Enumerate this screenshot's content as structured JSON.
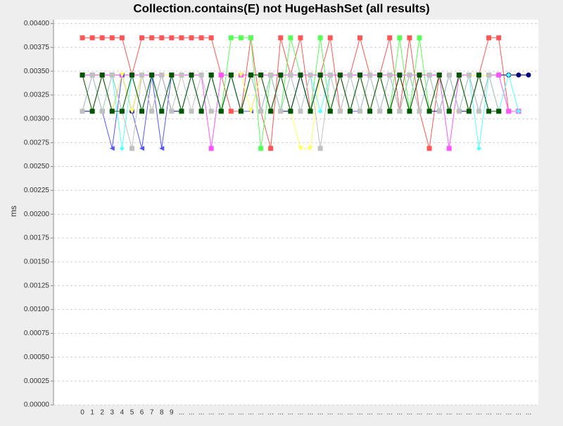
{
  "chart_data": {
    "type": "line",
    "title": "Collection.contains(E) not HugeHashSet (all results)",
    "y_label": "ms",
    "grid": true,
    "categories": [
      "0",
      "1",
      "2",
      "3",
      "4",
      "5",
      "6",
      "7",
      "8",
      "9",
      "...",
      "...",
      "...",
      "...",
      "...",
      "...",
      "...",
      "...",
      "...",
      "...",
      "...",
      "...",
      "...",
      "...",
      "...",
      "...",
      "...",
      "...",
      "...",
      "...",
      "...",
      "...",
      "...",
      "...",
      "...",
      "...",
      "...",
      "...",
      "...",
      "...",
      "...",
      "...",
      "...",
      "...",
      "...",
      "..."
    ],
    "ylim": [
      0,
      0.00404
    ],
    "yticks": [
      {
        "value": 0,
        "label": "0.00000"
      },
      {
        "value": 0.00025,
        "label": "0.00025"
      },
      {
        "value": 0.0005,
        "label": "0.00050"
      },
      {
        "value": 0.00075,
        "label": "0.00075"
      },
      {
        "value": 0.001,
        "label": "0.00100"
      },
      {
        "value": 0.00125,
        "label": "0.00125"
      },
      {
        "value": 0.0015,
        "label": "0.00150"
      },
      {
        "value": 0.00175,
        "label": "0.00175"
      },
      {
        "value": 0.002,
        "label": "0.00200"
      },
      {
        "value": 0.00225,
        "label": "0.00225"
      },
      {
        "value": 0.0025,
        "label": "0.00250"
      },
      {
        "value": 0.00275,
        "label": "0.00275"
      },
      {
        "value": 0.003,
        "label": "0.00300"
      },
      {
        "value": 0.00325,
        "label": "0.00325"
      },
      {
        "value": 0.0035,
        "label": "0.00350"
      },
      {
        "value": 0.00375,
        "label": "0.00375"
      },
      {
        "value": 0.004,
        "label": "0.00400"
      }
    ],
    "series": [
      {
        "color": "#ff5555",
        "marker": "square",
        "values": [
          0.00385,
          0.00385,
          0.00385,
          0.00385,
          0.00385,
          0.00346,
          0.00385,
          0.00385,
          0.00385,
          0.00385,
          0.00385,
          0.00385,
          0.00385,
          0.00385,
          0.00346,
          0.00308,
          0.00308,
          0.00385,
          0.00308,
          0.00269,
          0.00385,
          0.00346,
          0.00385,
          0.00308,
          0.00346,
          0.00385,
          0.00308,
          0.00346,
          0.00385,
          0.00346,
          0.00346,
          0.00385,
          0.00308,
          0.00385,
          0.00308,
          0.00269,
          0.00346,
          0.00308,
          0.00346,
          0.00308,
          0.00346,
          0.00385,
          0.00385,
          0.00308,
          0.00308,
          null
        ]
      },
      {
        "color": "#000080",
        "marker": "circle",
        "values": [
          0.00308,
          0.00308,
          0.00346,
          0.00308,
          0.00346,
          0.00308,
          0.00346,
          0.00308,
          0.00346,
          0.00308,
          0.00308,
          0.00346,
          0.00308,
          0.00346,
          0.00308,
          0.00346,
          0.00308,
          0.00346,
          0.00308,
          0.00346,
          0.00308,
          0.00308,
          0.00346,
          0.00308,
          0.00346,
          0.00308,
          0.00346,
          0.00308,
          0.00346,
          0.00308,
          0.00346,
          0.00308,
          0.00346,
          0.00308,
          0.00346,
          0.00308,
          0.00308,
          0.00346,
          0.00308,
          0.00308,
          0.00346,
          0.00346,
          0.00346,
          0.00346,
          0.00346,
          0.00346
        ]
      },
      {
        "color": "#55ff55",
        "marker": "square",
        "values": [
          0.00346,
          0.00346,
          0.00308,
          0.00346,
          0.00308,
          0.00346,
          0.00308,
          0.00346,
          0.00308,
          0.00346,
          0.00308,
          0.00346,
          0.00308,
          0.00346,
          0.00308,
          0.00385,
          0.00385,
          0.00385,
          0.00269,
          0.00346,
          0.00308,
          0.00385,
          0.00346,
          0.00308,
          0.00385,
          0.00308,
          0.00346,
          0.00308,
          0.00346,
          0.00308,
          0.00346,
          0.00308,
          0.00385,
          0.00308,
          0.00385,
          0.00308,
          0.00346,
          0.00308,
          0.00346,
          0.00308,
          0.00346,
          0.00346,
          0.00308,
          null,
          null,
          null
        ]
      },
      {
        "color": "#ff55ff",
        "marker": "square",
        "values": [
          0.00346,
          0.00346,
          0.00346,
          0.00346,
          0.00346,
          0.00346,
          0.00346,
          0.00346,
          0.00346,
          0.00346,
          0.00346,
          0.00346,
          0.00346,
          0.00269,
          0.00346,
          0.00346,
          0.00346,
          0.00346,
          0.00346,
          0.00346,
          0.00346,
          0.00346,
          0.00346,
          0.00346,
          0.00346,
          0.00346,
          0.00346,
          0.00346,
          0.00346,
          0.00346,
          0.00346,
          0.00346,
          0.00346,
          0.00346,
          0.00346,
          0.00346,
          0.00346,
          0.00269,
          0.00346,
          0.00346,
          0.00346,
          0.00346,
          0.00346,
          0.00308,
          0.00308,
          null
        ]
      },
      {
        "color": "#5555ff",
        "marker": "triangle-left",
        "values": [
          0.00308,
          0.00346,
          0.00308,
          0.00269,
          0.00346,
          0.00308,
          0.00269,
          0.00346,
          0.00269,
          0.00346,
          0.00308,
          0.00346,
          0.00308,
          0.00346,
          0.00308,
          0.00346,
          0.00308,
          0.00308,
          0.00346,
          0.00308,
          0.00346,
          0.00308,
          0.00346,
          0.00308,
          0.00346,
          0.00308,
          0.00346,
          0.00308,
          0.00308,
          0.00346,
          0.00308,
          0.00346,
          0.00308,
          0.00346,
          0.00308,
          0.00346,
          0.00308,
          0.00346,
          0.00308,
          0.00346,
          0.00308,
          0.00346,
          0.00308,
          null,
          null,
          null
        ]
      },
      {
        "color": "#ffff55",
        "marker": "triangle-down",
        "values": [
          0.00346,
          0.00308,
          0.00346,
          0.00308,
          0.00346,
          0.00308,
          0.00346,
          0.00308,
          0.00346,
          0.00346,
          0.00308,
          0.00346,
          0.00308,
          0.00346,
          0.00308,
          0.00346,
          0.00346,
          0.00308,
          0.00346,
          0.00308,
          0.00346,
          0.00308,
          0.00269,
          0.00269,
          0.00346,
          0.00308,
          0.00346,
          0.00308,
          0.00346,
          0.00308,
          0.00346,
          0.00308,
          0.00346,
          0.00308,
          0.00346,
          0.00308,
          0.00346,
          0.00308,
          0.00308,
          0.00346,
          0.00346,
          0.00346,
          0.00308,
          null,
          null,
          null
        ]
      },
      {
        "color": "#55ffff",
        "marker": "diamond",
        "values": [
          0.00308,
          0.00346,
          0.00308,
          0.00346,
          0.00269,
          0.00346,
          0.00308,
          0.00346,
          0.00308,
          0.00346,
          0.00308,
          0.00346,
          0.00308,
          0.00346,
          0.00308,
          0.00346,
          0.00308,
          0.00346,
          0.00308,
          0.00346,
          0.00308,
          0.00346,
          0.00308,
          0.00346,
          0.00308,
          0.00346,
          0.00308,
          0.00346,
          0.00308,
          0.00346,
          0.00308,
          0.00346,
          0.00308,
          0.00346,
          0.00308,
          0.00346,
          0.00308,
          0.00346,
          0.00308,
          0.00346,
          0.00269,
          0.00346,
          0.00308,
          0.00346,
          0.00308,
          null
        ]
      },
      {
        "color": "#c0c0c0",
        "marker": "square",
        "values": [
          0.00308,
          0.00346,
          0.00308,
          0.00346,
          0.00308,
          0.00269,
          0.00346,
          0.00308,
          0.00346,
          0.00308,
          0.00346,
          0.00308,
          0.00346,
          0.00308,
          0.00308,
          0.00346,
          0.00308,
          0.00346,
          0.00308,
          0.00346,
          0.00308,
          0.00346,
          0.00308,
          0.00346,
          0.00269,
          0.00346,
          0.00308,
          0.00346,
          0.00308,
          0.00346,
          0.00308,
          0.00346,
          0.00308,
          0.00346,
          0.00308,
          0.00346,
          0.00308,
          0.00346,
          0.00308,
          0.00346,
          0.00308,
          0.00346,
          0.00308,
          null,
          null,
          null
        ]
      },
      {
        "color": "#005500",
        "marker": "square",
        "values": [
          0.00346,
          0.00308,
          0.00346,
          0.00308,
          0.00308,
          0.00346,
          0.00308,
          0.00346,
          0.00308,
          0.00346,
          0.00308,
          0.00346,
          0.00308,
          0.00346,
          0.00308,
          0.00346,
          0.00308,
          0.00346,
          0.00346,
          0.00308,
          0.00346,
          0.00308,
          0.00346,
          0.00308,
          0.00346,
          0.00308,
          0.00346,
          0.00308,
          0.00346,
          0.00308,
          0.00346,
          0.00308,
          0.00346,
          0.00308,
          0.00346,
          0.00308,
          0.00346,
          0.00308,
          0.00346,
          0.00308,
          0.00346,
          0.00308,
          0.00308,
          null,
          null,
          null
        ]
      }
    ]
  }
}
